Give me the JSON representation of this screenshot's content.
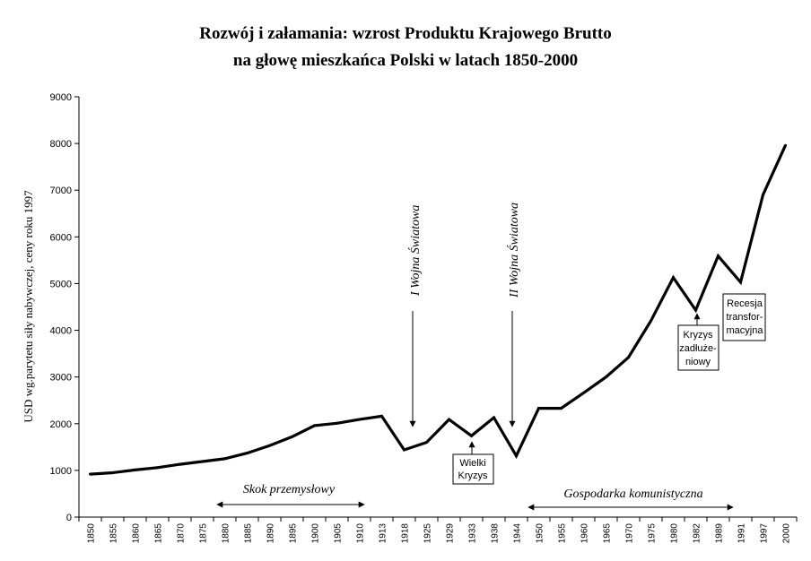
{
  "chart_data": {
    "type": "line",
    "title": "Rozwój i załamania: wzrost Produktu Krajowego Brutto",
    "subtitle": "na głowę mieszkańca Polski w latach 1850-2000",
    "ylabel": "USD wg.parytetu siły nabywczej, ceny roku 1997",
    "xlabel": "",
    "ylim": [
      0,
      9000
    ],
    "yticks": [
      "0",
      "1000",
      "2000",
      "3000",
      "4000",
      "5000",
      "6000",
      "7000",
      "8000",
      "9000"
    ],
    "grid": false,
    "legend": "none",
    "categories": [
      "1850",
      "1855",
      "1860",
      "1865",
      "1870",
      "1875",
      "1880",
      "1885",
      "1890",
      "1895",
      "1900",
      "1905",
      "1910",
      "1913",
      "1918",
      "1925",
      "1929",
      "1933",
      "1938",
      "1944",
      "1950",
      "1955",
      "1960",
      "1965",
      "1970",
      "1975",
      "1980",
      "1982",
      "1989",
      "1991",
      "1997",
      "2000"
    ],
    "values": [
      920,
      950,
      1010,
      1060,
      1130,
      1190,
      1250,
      1370,
      1530,
      1720,
      1960,
      2010,
      2090,
      2160,
      1440,
      1600,
      2090,
      1740,
      2130,
      1310,
      2330,
      2330,
      2660,
      3000,
      3420,
      4200,
      5130,
      4430,
      5590,
      5030,
      6900,
      7960
    ],
    "line_color": "#000000",
    "annotations": {
      "ww1": "I Wojna Światowa",
      "ww2": "II Wojna Światowa",
      "great_depression": [
        "Wielki",
        "Kryzys"
      ],
      "debt_crisis": [
        "Kryzys",
        "zadłuże-",
        "niowy"
      ],
      "transformation": [
        "Recesja",
        "transfor-",
        "macyjna"
      ],
      "industrial_leap": "Skok przemysłowy",
      "communist_economy": "Gospodarka komunistyczna"
    }
  }
}
